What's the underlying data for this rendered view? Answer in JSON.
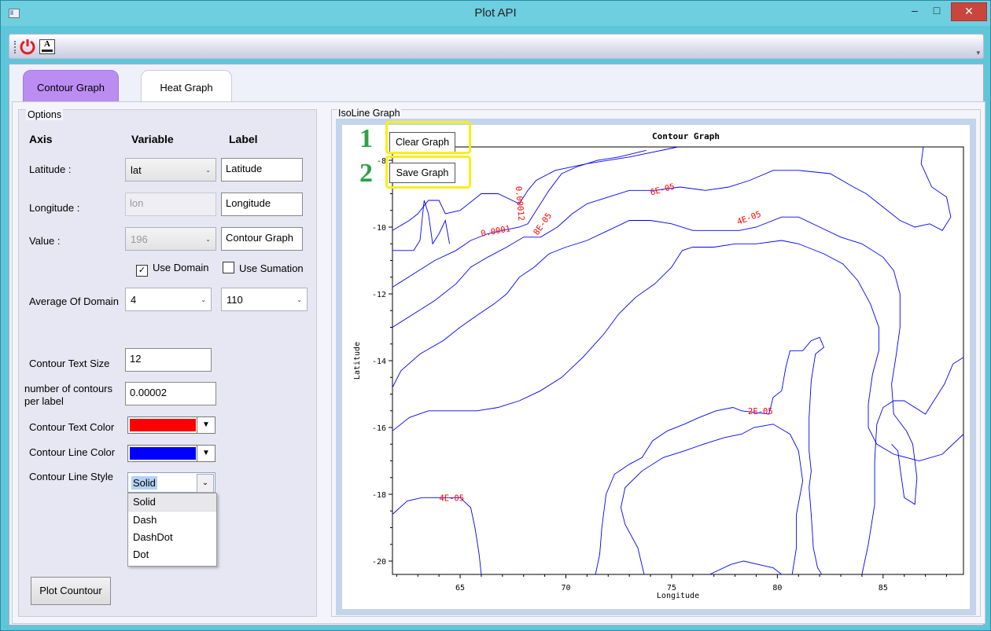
{
  "window": {
    "title": "Plot API"
  },
  "titlebar": {
    "minimize": "–",
    "maximize": "□",
    "close": "✕"
  },
  "toolbar": {
    "icons": [
      "power-icon",
      "font-icon"
    ],
    "font_icon_text": "A"
  },
  "tabs": [
    {
      "label": "Contour Graph",
      "active": true
    },
    {
      "label": "Heat Graph",
      "active": false
    }
  ],
  "options": {
    "legend": "Options",
    "headers": {
      "axis": "Axis",
      "variable": "Variable",
      "label": "Label"
    },
    "latitude": {
      "label": "Latitude :",
      "variable": "lat",
      "axis_label": "Latitude"
    },
    "longitude": {
      "label": "Longitude :",
      "variable": "lon",
      "axis_label": "Longitude"
    },
    "value": {
      "label": "Value :",
      "variable": "196",
      "axis_label": "Contour Graph"
    },
    "use_domain": {
      "label": "Use Domain",
      "checked": true
    },
    "use_sumation": {
      "label": "Use Sumation",
      "checked": false
    },
    "average_of_domain": {
      "label": "Average Of Domain",
      "value1": "4",
      "value2": "110"
    },
    "contour_text_size": {
      "label": "Contour Text Size",
      "value": "12"
    },
    "contours_per_label": {
      "label": "number of contours per label",
      "value": "0.00002"
    },
    "contour_text_color": {
      "label": "Contour Text Color",
      "color": "#ff0000"
    },
    "contour_line_color": {
      "label": "Contour Line Color",
      "color": "#0000ff"
    },
    "contour_line_style": {
      "label": "Contour Line Style",
      "value": "Solid",
      "options": [
        "Solid",
        "Dash",
        "DashDot",
        "Dot"
      ]
    },
    "plot_button": "Plot Countour"
  },
  "graph": {
    "legend": "IsoLine Graph",
    "clear_button": "Clear Graph",
    "save_button": "Save Graph",
    "annotations": [
      "1",
      "2"
    ],
    "highlight_color": "#f6f018",
    "annotation_color": "#2ea04a"
  },
  "chart_data": {
    "type": "contour",
    "title": "Contour Graph",
    "xlabel": "Longitude",
    "ylabel": "Latitude",
    "xlim": [
      61.8,
      88.8
    ],
    "ylim": [
      -20.4,
      -7.6
    ],
    "x_ticks": [
      65,
      70,
      75,
      80,
      85
    ],
    "y_ticks": [
      -8,
      -10,
      -12,
      -14,
      -16,
      -18,
      -20
    ],
    "line_color": "#0000ff",
    "label_color": "#ff0000",
    "contour_labels": [
      {
        "text": "0.00012",
        "x": 67.7,
        "y": -9.3,
        "rotate": 85
      },
      {
        "text": "0.0001",
        "x": 66.7,
        "y": -10.2,
        "rotate": -10
      },
      {
        "text": "8E-05",
        "x": 69.0,
        "y": -9.95,
        "rotate": -55
      },
      {
        "text": "6E-05",
        "x": 74.6,
        "y": -8.95,
        "rotate": -15
      },
      {
        "text": "4E-05",
        "x": 78.7,
        "y": -9.8,
        "rotate": -20
      },
      {
        "text": "2E-05",
        "x": 79.2,
        "y": -15.6,
        "rotate": 0
      },
      {
        "text": "4E-05",
        "x": 64.6,
        "y": -18.2,
        "rotate": 0
      }
    ],
    "lines": [
      [
        [
          61.8,
          -10.1
        ],
        [
          62.6,
          -9.8
        ],
        [
          63.0,
          -9.6
        ],
        [
          63.5,
          -9.2
        ],
        [
          64.0,
          -9.2
        ],
        [
          64.3,
          -9.6
        ],
        [
          65.0,
          -9.5
        ],
        [
          66.0,
          -9.0
        ],
        [
          66.8,
          -9.0
        ],
        [
          67.8,
          -9.3
        ],
        [
          68.2,
          -8.9
        ],
        [
          68.6,
          -8.6
        ],
        [
          69.5,
          -8.3
        ],
        [
          71.0,
          -8.1
        ],
        [
          73.0,
          -7.9
        ],
        [
          75.3,
          -7.6
        ]
      ],
      [
        [
          61.8,
          -10.7
        ],
        [
          62.8,
          -10.7
        ],
        [
          63.1,
          -10.4
        ],
        [
          63.2,
          -9.8
        ],
        [
          63.3,
          -9.2
        ],
        [
          63.5,
          -9.6
        ],
        [
          63.7,
          -10.5
        ],
        [
          64.0,
          -10.2
        ],
        [
          64.3,
          -9.8
        ],
        [
          64.5,
          -10.5
        ]
      ],
      [
        [
          61.8,
          -11.8
        ],
        [
          62.8,
          -11.4
        ],
        [
          63.8,
          -11.0
        ],
        [
          64.8,
          -10.7
        ],
        [
          65.5,
          -10.4
        ],
        [
          66.3,
          -10.2
        ],
        [
          67.0,
          -10.1
        ],
        [
          67.8,
          -10.0
        ],
        [
          68.2,
          -9.9
        ],
        [
          68.6,
          -9.5
        ],
        [
          69.2,
          -8.9
        ],
        [
          69.8,
          -8.4
        ],
        [
          70.5,
          -8.2
        ],
        [
          71.5,
          -8.0
        ],
        [
          72.5,
          -7.9
        ],
        [
          73.8,
          -7.7
        ]
      ],
      [
        [
          61.8,
          -13.0
        ],
        [
          62.8,
          -12.6
        ],
        [
          63.8,
          -12.2
        ],
        [
          64.8,
          -11.7
        ],
        [
          65.5,
          -11.2
        ],
        [
          66.3,
          -10.9
        ],
        [
          67.2,
          -10.6
        ],
        [
          68.0,
          -10.3
        ],
        [
          68.8,
          -10.3
        ],
        [
          69.6,
          -10.0
        ],
        [
          70.3,
          -9.6
        ],
        [
          71.0,
          -9.3
        ],
        [
          72.0,
          -9.1
        ],
        [
          73.0,
          -8.9
        ],
        [
          74.2,
          -8.9
        ],
        [
          75.4,
          -8.8
        ],
        [
          76.6,
          -8.9
        ],
        [
          77.7,
          -8.8
        ],
        [
          78.7,
          -8.6
        ],
        [
          79.8,
          -8.3
        ],
        [
          81.0,
          -8.3
        ],
        [
          82.5,
          -8.4
        ],
        [
          83.6,
          -8.8
        ],
        [
          84.2,
          -9.0
        ],
        [
          85.0,
          -9.4
        ],
        [
          85.8,
          -9.8
        ],
        [
          86.5,
          -10.0
        ],
        [
          87.2,
          -9.9
        ],
        [
          87.8,
          -10.1
        ],
        [
          88.2,
          -9.7
        ],
        [
          88.0,
          -9.1
        ],
        [
          87.3,
          -8.8
        ],
        [
          86.8,
          -8.1
        ],
        [
          86.9,
          -7.6
        ]
      ],
      [
        [
          61.8,
          -14.8
        ],
        [
          62.2,
          -14.3
        ],
        [
          63.1,
          -13.8
        ],
        [
          64.2,
          -13.4
        ],
        [
          65.0,
          -13.0
        ],
        [
          65.9,
          -12.6
        ],
        [
          66.6,
          -12.3
        ],
        [
          67.2,
          -12.0
        ],
        [
          67.8,
          -11.5
        ],
        [
          68.5,
          -11.2
        ],
        [
          69.2,
          -10.8
        ],
        [
          70.0,
          -10.6
        ],
        [
          71.0,
          -10.4
        ],
        [
          72.0,
          -10.1
        ],
        [
          73.0,
          -9.8
        ],
        [
          74.0,
          -9.8
        ],
        [
          75.0,
          -9.9
        ],
        [
          76.0,
          -10.1
        ],
        [
          77.0,
          -10.1
        ],
        [
          78.2,
          -10.1
        ],
        [
          79.0,
          -10.0
        ],
        [
          80.2,
          -9.7
        ],
        [
          81.0,
          -9.7
        ],
        [
          82.0,
          -10.0
        ],
        [
          83.0,
          -10.3
        ],
        [
          84.0,
          -10.5
        ],
        [
          85.0,
          -10.9
        ],
        [
          85.5,
          -11.3
        ],
        [
          85.8,
          -12.0
        ],
        [
          85.8,
          -13.0
        ],
        [
          85.6,
          -13.9
        ],
        [
          85.4,
          -14.7
        ],
        [
          85.5,
          -15.6
        ],
        [
          86.1,
          -16.1
        ],
        [
          86.4,
          -16.5
        ],
        [
          86.6,
          -17.5
        ],
        [
          86.5,
          -18.3
        ],
        [
          86.0,
          -18.1
        ],
        [
          85.8,
          -17.2
        ],
        [
          85.7,
          -16.7
        ],
        [
          85.4,
          -16.5
        ]
      ],
      [
        [
          61.8,
          -16.1
        ],
        [
          62.6,
          -15.7
        ],
        [
          63.5,
          -15.5
        ],
        [
          64.7,
          -15.5
        ],
        [
          65.8,
          -15.5
        ],
        [
          66.8,
          -15.4
        ],
        [
          67.8,
          -15.2
        ],
        [
          68.8,
          -14.9
        ],
        [
          69.8,
          -14.5
        ],
        [
          70.8,
          -13.9
        ],
        [
          71.8,
          -13.2
        ],
        [
          72.5,
          -12.6
        ],
        [
          73.3,
          -12.1
        ],
        [
          74.2,
          -11.7
        ],
        [
          75.0,
          -11.2
        ],
        [
          75.5,
          -10.7
        ],
        [
          76.0,
          -10.6
        ],
        [
          77.0,
          -10.6
        ],
        [
          78.0,
          -10.5
        ],
        [
          79.0,
          -10.5
        ],
        [
          80.2,
          -10.4
        ],
        [
          81.0,
          -10.5
        ],
        [
          82.2,
          -10.8
        ],
        [
          83.1,
          -11.1
        ],
        [
          83.8,
          -11.6
        ],
        [
          84.4,
          -12.3
        ],
        [
          84.8,
          -13.0
        ],
        [
          84.8,
          -13.7
        ],
        [
          84.5,
          -14.4
        ],
        [
          84.3,
          -15.3
        ],
        [
          84.3,
          -16.0
        ],
        [
          84.7,
          -16.5
        ],
        [
          85.5,
          -16.8
        ],
        [
          86.7,
          -17.0
        ],
        [
          87.8,
          -16.8
        ],
        [
          88.8,
          -16.2
        ]
      ],
      [
        [
          84.0,
          -20.4
        ],
        [
          84.3,
          -19.5
        ],
        [
          84.6,
          -18.3
        ],
        [
          84.6,
          -17.0
        ],
        [
          84.7,
          -15.9
        ],
        [
          85.0,
          -15.4
        ],
        [
          85.5,
          -15.2
        ],
        [
          86.0,
          -15.2
        ],
        [
          87.0,
          -15.6
        ],
        [
          87.9,
          -14.7
        ],
        [
          88.3,
          -14.1
        ],
        [
          88.8,
          -13.9
        ]
      ],
      [
        [
          71.4,
          -20.4
        ],
        [
          71.6,
          -19.8
        ],
        [
          71.7,
          -19.0
        ],
        [
          71.9,
          -18.0
        ],
        [
          72.3,
          -17.4
        ],
        [
          73.0,
          -17.1
        ],
        [
          73.6,
          -16.9
        ],
        [
          74.1,
          -16.4
        ],
        [
          74.8,
          -16.1
        ],
        [
          75.6,
          -15.9
        ],
        [
          76.3,
          -15.7
        ],
        [
          77.1,
          -15.5
        ],
        [
          77.9,
          -15.4
        ],
        [
          78.3,
          -15.5
        ],
        [
          79.6,
          -15.6
        ],
        [
          79.8,
          -15.1
        ],
        [
          80.2,
          -14.9
        ],
        [
          80.4,
          -14.2
        ],
        [
          80.6,
          -13.7
        ],
        [
          81.2,
          -13.7
        ],
        [
          81.6,
          -13.4
        ],
        [
          82.0,
          -13.3
        ],
        [
          82.2,
          -13.6
        ],
        [
          81.8,
          -13.8
        ],
        [
          81.6,
          -14.6
        ],
        [
          81.5,
          -15.7
        ],
        [
          81.5,
          -16.7
        ],
        [
          81.6,
          -17.3
        ],
        [
          81.5,
          -17.8
        ],
        [
          81.6,
          -18.6
        ],
        [
          81.7,
          -19.6
        ],
        [
          81.9,
          -20.2
        ],
        [
          82.1,
          -20.4
        ]
      ],
      [
        [
          61.8,
          -18.6
        ],
        [
          62.5,
          -18.2
        ],
        [
          63.2,
          -18.1
        ],
        [
          64.0,
          -18.1
        ],
        [
          65.0,
          -18.1
        ],
        [
          65.5,
          -18.4
        ],
        [
          65.7,
          -19.0
        ],
        [
          65.9,
          -19.8
        ],
        [
          66.0,
          -20.4
        ]
      ],
      [
        [
          73.7,
          -20.4
        ],
        [
          73.4,
          -19.6
        ],
        [
          72.8,
          -18.9
        ],
        [
          72.6,
          -18.4
        ],
        [
          72.8,
          -17.8
        ],
        [
          73.6,
          -17.3
        ],
        [
          74.6,
          -16.9
        ],
        [
          75.6,
          -16.7
        ],
        [
          76.5,
          -16.5
        ],
        [
          77.5,
          -16.3
        ],
        [
          78.3,
          -16.2
        ],
        [
          78.9,
          -16.0
        ],
        [
          79.8,
          -15.9
        ],
        [
          80.6,
          -16.2
        ],
        [
          81.0,
          -16.7
        ],
        [
          81.2,
          -17.6
        ],
        [
          80.9,
          -18.6
        ],
        [
          80.9,
          -19.6
        ],
        [
          80.7,
          -20.4
        ]
      ],
      [
        [
          76.8,
          -20.4
        ],
        [
          77.8,
          -20.1
        ],
        [
          78.4,
          -20.0
        ],
        [
          79.1,
          -20.1
        ],
        [
          79.8,
          -20.2
        ],
        [
          80.2,
          -20.4
        ]
      ]
    ]
  }
}
